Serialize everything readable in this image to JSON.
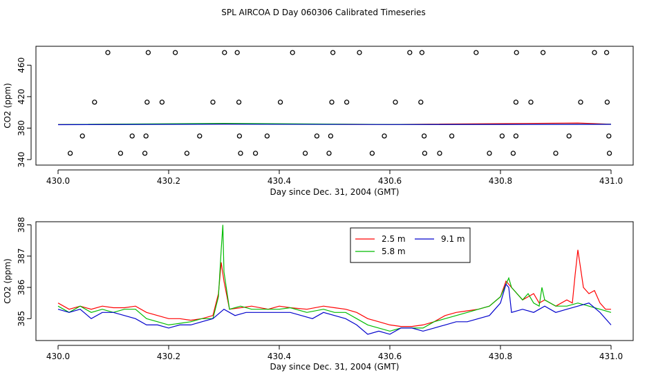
{
  "figure_title": "SPL AIRCOA D  Day 060306  Calibrated Timeseries",
  "colors": {
    "series_2_5": "#ff0000",
    "series_5_8": "#00bb00",
    "series_9_1": "#0000cc",
    "axis": "#000000"
  },
  "chart_data": [
    {
      "type": "line",
      "panel": "top",
      "title": "",
      "xlabel": "Day since Dec. 31, 2004 (GMT)",
      "ylabel": "CO2 (ppm)",
      "xlim": [
        429.96,
        431.04
      ],
      "ylim": [
        333,
        484
      ],
      "x_ticks": [
        430.0,
        430.2,
        430.4,
        430.6,
        430.8,
        431.0
      ],
      "x_tick_labels": [
        "430.0",
        "430.2",
        "430.4",
        "430.6",
        "430.8",
        "431.0"
      ],
      "y_ticks": [
        340,
        380,
        420,
        460
      ],
      "y_tick_labels": [
        "340",
        "380",
        "420",
        "460"
      ],
      "series": [
        {
          "name": "2.5 m",
          "color": "#ff0000",
          "x": [
            430.0,
            430.3,
            430.6,
            430.94,
            431.0
          ],
          "y": [
            384.5,
            385.5,
            384.6,
            386.5,
            385.0
          ]
        },
        {
          "name": "5.8 m",
          "color": "#00bb00",
          "x": [
            430.0,
            430.3,
            430.6,
            431.0
          ],
          "y": [
            384.5,
            386.0,
            384.6,
            385.0
          ]
        },
        {
          "name": "9.1 m",
          "color": "#0000cc",
          "x": [
            430.0,
            430.3,
            430.6,
            431.0
          ],
          "y": [
            384.4,
            385.0,
            384.5,
            384.8
          ]
        }
      ],
      "calibration_points": {
        "x": [
          430.09,
          430.163,
          430.212,
          430.301,
          430.324,
          430.424,
          430.497,
          430.545,
          430.636,
          430.658,
          430.756,
          430.829,
          430.877,
          430.97,
          430.992,
          430.066,
          430.161,
          430.188,
          430.28,
          430.327,
          430.402,
          430.495,
          430.522,
          430.61,
          430.656,
          430.828,
          430.855,
          430.945,
          430.993,
          430.044,
          430.134,
          430.159,
          430.256,
          430.328,
          430.378,
          430.468,
          430.493,
          430.59,
          430.662,
          430.712,
          430.803,
          430.828,
          430.924,
          430.996,
          430.022,
          430.113,
          430.157,
          430.233,
          430.33,
          430.357,
          430.447,
          430.49,
          430.568,
          430.663,
          430.69,
          430.78,
          430.823,
          430.9,
          430.997
        ],
        "y": [
          476,
          476,
          476,
          476,
          476,
          476,
          476,
          476,
          476,
          476,
          476,
          476,
          476,
          476,
          476,
          413,
          413,
          413,
          413,
          413,
          413,
          413,
          413,
          413,
          413,
          413,
          413,
          413,
          413,
          370,
          370,
          370,
          370,
          370,
          370,
          370,
          370,
          370,
          370,
          370,
          370,
          370,
          370,
          370,
          348,
          348,
          348,
          348,
          348,
          348,
          348,
          348,
          348,
          348,
          348,
          348,
          348,
          348,
          348
        ]
      }
    },
    {
      "type": "line",
      "panel": "bottom",
      "title": "",
      "xlabel": "Day since Dec. 31, 2004 (GMT)",
      "ylabel": "CO2 (ppm)",
      "xlim": [
        429.96,
        431.04
      ],
      "ylim": [
        384.3,
        388.1
      ],
      "x_ticks": [
        430.0,
        430.2,
        430.4,
        430.6,
        430.8,
        431.0
      ],
      "x_tick_labels": [
        "430.0",
        "430.2",
        "430.4",
        "430.6",
        "430.8",
        "431.0"
      ],
      "y_ticks": [
        385,
        386,
        387,
        388
      ],
      "y_tick_labels": [
        "385",
        "386",
        "387",
        "388"
      ],
      "legend": {
        "placement": "top-center",
        "entries": [
          "2.5 m",
          "5.8 m",
          "9.1 m"
        ]
      },
      "series": [
        {
          "name": "2.5 m",
          "color": "#ff0000",
          "x": [
            430.0,
            430.02,
            430.04,
            430.06,
            430.08,
            430.1,
            430.12,
            430.14,
            430.16,
            430.18,
            430.2,
            430.22,
            430.24,
            430.26,
            430.28,
            430.29,
            430.295,
            430.3,
            430.31,
            430.33,
            430.35,
            430.38,
            430.4,
            430.42,
            430.45,
            430.48,
            430.5,
            430.52,
            430.54,
            430.56,
            430.58,
            430.6,
            430.62,
            430.64,
            430.66,
            430.68,
            430.7,
            430.72,
            430.74,
            430.76,
            430.78,
            430.8,
            430.81,
            430.82,
            430.84,
            430.85,
            430.86,
            430.87,
            430.88,
            430.9,
            430.92,
            430.93,
            430.935,
            430.94,
            430.95,
            430.96,
            430.97,
            430.98,
            430.99,
            431.0
          ],
          "y": [
            385.5,
            385.3,
            385.4,
            385.3,
            385.4,
            385.35,
            385.35,
            385.4,
            385.2,
            385.1,
            385.0,
            385.0,
            384.95,
            385.0,
            385.1,
            385.8,
            386.8,
            386.2,
            385.3,
            385.35,
            385.4,
            385.3,
            385.4,
            385.35,
            385.3,
            385.4,
            385.35,
            385.3,
            385.2,
            385.0,
            384.9,
            384.8,
            384.75,
            384.75,
            384.8,
            384.9,
            385.1,
            385.2,
            385.25,
            385.3,
            385.4,
            385.7,
            386.2,
            386.0,
            385.6,
            385.7,
            385.8,
            385.5,
            385.6,
            385.4,
            385.6,
            385.5,
            386.4,
            387.2,
            386.0,
            385.8,
            385.9,
            385.5,
            385.3,
            385.3
          ]
        },
        {
          "name": "5.8 m",
          "color": "#00bb00",
          "x": [
            430.0,
            430.02,
            430.04,
            430.06,
            430.08,
            430.1,
            430.12,
            430.14,
            430.16,
            430.18,
            430.2,
            430.22,
            430.24,
            430.26,
            430.28,
            430.29,
            430.295,
            430.298,
            430.3,
            430.31,
            430.33,
            430.35,
            430.38,
            430.4,
            430.42,
            430.45,
            430.48,
            430.5,
            430.52,
            430.54,
            430.56,
            430.58,
            430.6,
            430.62,
            430.64,
            430.66,
            430.68,
            430.7,
            430.72,
            430.74,
            430.76,
            430.78,
            430.8,
            430.81,
            430.815,
            430.82,
            430.84,
            430.85,
            430.86,
            430.87,
            430.875,
            430.88,
            430.9,
            430.92,
            430.94,
            430.96,
            430.98,
            431.0
          ],
          "y": [
            385.4,
            385.2,
            385.4,
            385.2,
            385.3,
            385.2,
            385.3,
            385.3,
            385.0,
            384.9,
            384.8,
            384.85,
            384.9,
            385.0,
            385.0,
            385.7,
            387.2,
            388.0,
            386.5,
            385.3,
            385.4,
            385.3,
            385.3,
            385.3,
            385.35,
            385.2,
            385.3,
            385.2,
            385.2,
            385.0,
            384.8,
            384.7,
            384.6,
            384.7,
            384.7,
            384.7,
            384.9,
            385.0,
            385.1,
            385.2,
            385.3,
            385.4,
            385.7,
            386.1,
            386.3,
            386.0,
            385.6,
            385.8,
            385.5,
            385.4,
            386.0,
            385.6,
            385.4,
            385.4,
            385.5,
            385.4,
            385.3,
            385.2
          ]
        },
        {
          "name": "9.1 m",
          "color": "#0000cc",
          "x": [
            430.0,
            430.02,
            430.04,
            430.06,
            430.08,
            430.1,
            430.12,
            430.14,
            430.16,
            430.18,
            430.2,
            430.22,
            430.24,
            430.26,
            430.28,
            430.3,
            430.32,
            430.34,
            430.36,
            430.38,
            430.4,
            430.42,
            430.44,
            430.46,
            430.48,
            430.5,
            430.52,
            430.54,
            430.56,
            430.58,
            430.6,
            430.62,
            430.64,
            430.66,
            430.68,
            430.7,
            430.72,
            430.74,
            430.76,
            430.78,
            430.8,
            430.81,
            430.815,
            430.82,
            430.84,
            430.86,
            430.88,
            430.9,
            430.92,
            430.94,
            430.96,
            430.98,
            431.0
          ],
          "y": [
            385.3,
            385.2,
            385.3,
            385.0,
            385.2,
            385.2,
            385.1,
            385.0,
            384.8,
            384.8,
            384.7,
            384.8,
            384.8,
            384.9,
            385.0,
            385.3,
            385.1,
            385.2,
            385.2,
            385.2,
            385.2,
            385.2,
            385.1,
            385.0,
            385.2,
            385.1,
            385.0,
            384.8,
            384.5,
            384.6,
            384.5,
            384.7,
            384.7,
            384.6,
            384.7,
            384.8,
            384.9,
            384.9,
            385.0,
            385.1,
            385.5,
            386.1,
            386.0,
            385.2,
            385.3,
            385.2,
            385.4,
            385.2,
            385.3,
            385.4,
            385.5,
            385.2,
            384.8
          ]
        }
      ]
    }
  ]
}
